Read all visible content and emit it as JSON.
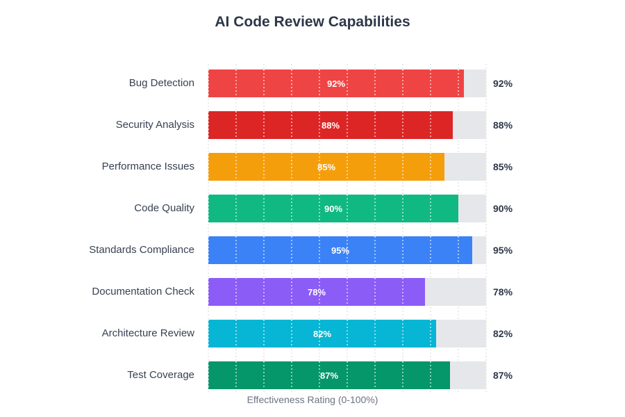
{
  "chart_data": {
    "type": "bar",
    "orientation": "horizontal",
    "title": "AI Code Review Capabilities",
    "xlabel": "Effectiveness Rating (0-100%)",
    "xlim": [
      0,
      100
    ],
    "grid": {
      "vertical_dotted_every_percent": 10
    },
    "value_suffix": "%",
    "categories": [
      "Bug Detection",
      "Security Analysis",
      "Performance Issues",
      "Code Quality",
      "Standards Compliance",
      "Documentation Check",
      "Architecture Review",
      "Test Coverage"
    ],
    "values": [
      92,
      88,
      85,
      90,
      95,
      78,
      82,
      87
    ],
    "bar_colors": [
      "#EF4444",
      "#DC2626",
      "#F59E0B",
      "#10B981",
      "#3B82F6",
      "#8B5CF6",
      "#06B6D4",
      "#059669"
    ],
    "track_color": "#E5E7EB",
    "title_color": "#2D3748",
    "category_label_color": "#374151",
    "value_label_color": "#2D3748",
    "axis_label_color": "#6B7280"
  }
}
